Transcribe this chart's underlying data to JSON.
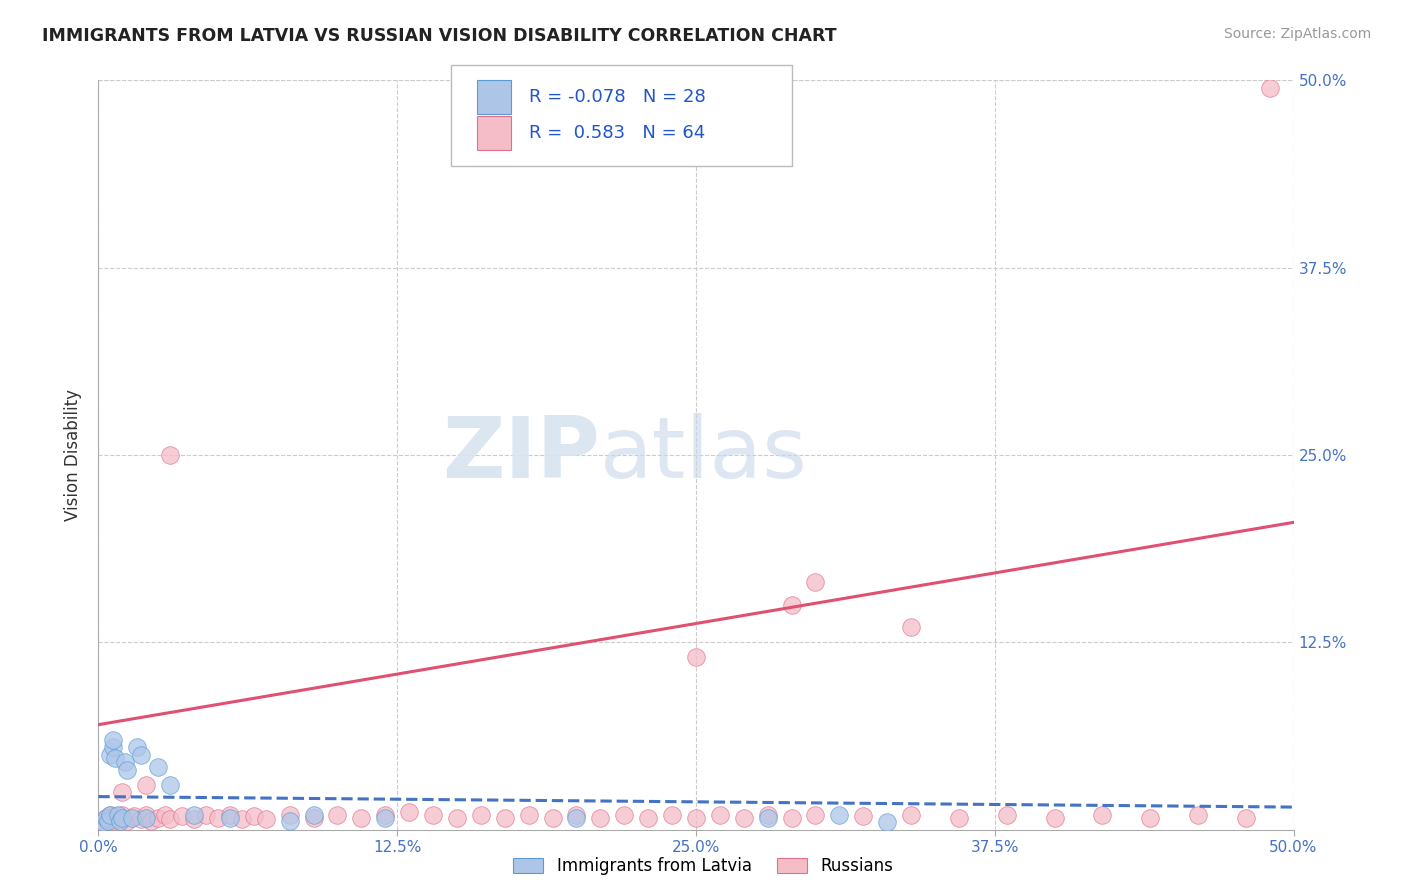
{
  "title": "IMMIGRANTS FROM LATVIA VS RUSSIAN VISION DISABILITY CORRELATION CHART",
  "source": "Source: ZipAtlas.com",
  "ylabel": "Vision Disability",
  "legend_label1": "Immigrants from Latvia",
  "legend_label2": "Russians",
  "R1": -0.078,
  "N1": 28,
  "R2": 0.583,
  "N2": 64,
  "color_blue_fill": "#adc6e8",
  "color_blue_edge": "#5b9bd5",
  "color_pink_fill": "#f4bdc8",
  "color_pink_edge": "#e07090",
  "color_trend_blue": "#4472c4",
  "color_trend_pink": "#e05070",
  "xlim": [
    0.0,
    0.5
  ],
  "ylim": [
    0.0,
    0.5
  ],
  "xtick_vals": [
    0.0,
    0.125,
    0.25,
    0.375,
    0.5
  ],
  "xtick_labels": [
    "0.0%",
    "12.5%",
    "25.0%",
    "37.5%",
    "50.0%"
  ],
  "ytick_vals": [
    0.125,
    0.25,
    0.375,
    0.5
  ],
  "ytick_labels": [
    "12.5%",
    "25.0%",
    "37.5%",
    "50.0%"
  ],
  "watermark_zip": "ZIP",
  "watermark_atlas": "atlas",
  "blue_x": [
    0.002,
    0.003,
    0.004,
    0.005,
    0.005,
    0.006,
    0.006,
    0.007,
    0.008,
    0.009,
    0.01,
    0.011,
    0.012,
    0.014,
    0.016,
    0.018,
    0.02,
    0.025,
    0.03,
    0.04,
    0.055,
    0.08,
    0.09,
    0.12,
    0.2,
    0.28,
    0.31,
    0.33
  ],
  "blue_y": [
    0.005,
    0.008,
    0.006,
    0.01,
    0.05,
    0.055,
    0.06,
    0.048,
    0.01,
    0.006,
    0.008,
    0.045,
    0.04,
    0.008,
    0.055,
    0.05,
    0.008,
    0.042,
    0.03,
    0.01,
    0.008,
    0.006,
    0.01,
    0.008,
    0.008,
    0.008,
    0.01,
    0.005
  ],
  "pink_x": [
    0.002,
    0.003,
    0.004,
    0.005,
    0.006,
    0.007,
    0.008,
    0.01,
    0.012,
    0.015,
    0.018,
    0.02,
    0.022,
    0.025,
    0.028,
    0.03,
    0.035,
    0.04,
    0.045,
    0.05,
    0.055,
    0.06,
    0.065,
    0.07,
    0.08,
    0.09,
    0.1,
    0.11,
    0.12,
    0.13,
    0.14,
    0.15,
    0.16,
    0.17,
    0.18,
    0.19,
    0.2,
    0.21,
    0.22,
    0.23,
    0.24,
    0.25,
    0.26,
    0.27,
    0.28,
    0.29,
    0.3,
    0.32,
    0.34,
    0.36,
    0.38,
    0.4,
    0.42,
    0.44,
    0.46,
    0.48,
    0.01,
    0.02,
    0.25,
    0.29,
    0.3,
    0.34,
    0.49,
    0.03
  ],
  "pink_y": [
    0.005,
    0.008,
    0.007,
    0.01,
    0.006,
    0.009,
    0.007,
    0.01,
    0.006,
    0.009,
    0.007,
    0.01,
    0.006,
    0.008,
    0.01,
    0.007,
    0.009,
    0.007,
    0.01,
    0.008,
    0.01,
    0.007,
    0.009,
    0.007,
    0.01,
    0.008,
    0.01,
    0.008,
    0.01,
    0.012,
    0.01,
    0.008,
    0.01,
    0.008,
    0.01,
    0.008,
    0.01,
    0.008,
    0.01,
    0.008,
    0.01,
    0.008,
    0.01,
    0.008,
    0.01,
    0.008,
    0.01,
    0.009,
    0.01,
    0.008,
    0.01,
    0.008,
    0.01,
    0.008,
    0.01,
    0.008,
    0.025,
    0.03,
    0.115,
    0.15,
    0.165,
    0.135,
    0.495,
    0.25
  ],
  "trend_pink_x0": 0.0,
  "trend_pink_y0": 0.07,
  "trend_pink_x1": 0.5,
  "trend_pink_y1": 0.205,
  "trend_blue_x0": 0.0,
  "trend_blue_y0": 0.022,
  "trend_blue_x1": 0.5,
  "trend_blue_y1": 0.015
}
